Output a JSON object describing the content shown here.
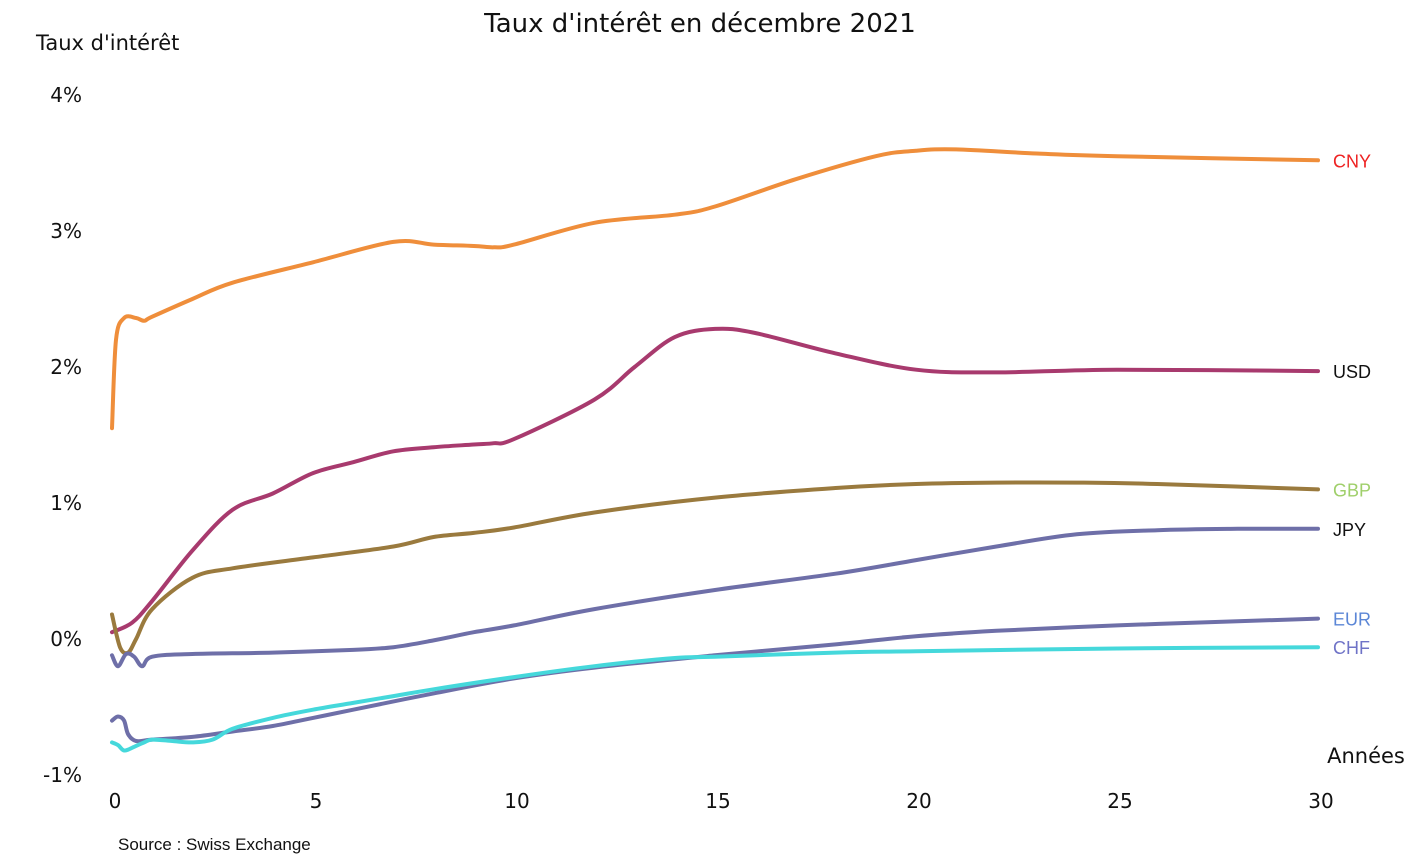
{
  "chart_data": {
    "type": "line",
    "title": "Taux d'intérêt en décembre 2021",
    "ylabel": "Taux d'intérêt",
    "xlabel": "Années",
    "source": "Source : Swiss Exchange",
    "xlim": [
      0,
      30
    ],
    "ylim": [
      -1,
      4
    ],
    "x_ticks": [
      0,
      5,
      10,
      15,
      20,
      25,
      30
    ],
    "y_ticks": [
      {
        "value": 4,
        "label": "4%"
      },
      {
        "value": 3,
        "label": "3%"
      },
      {
        "value": 2,
        "label": "2%"
      },
      {
        "value": 1,
        "label": "1%"
      },
      {
        "value": 0,
        "label": "0%"
      },
      {
        "value": -1,
        "label": "-1%"
      }
    ],
    "grid": false,
    "series": [
      {
        "name": "CNY",
        "color": "#ef8e3b",
        "label_color": "#ee2222",
        "points": [
          [
            0,
            1.55
          ],
          [
            0.1,
            2.2
          ],
          [
            0.3,
            2.36
          ],
          [
            0.6,
            2.36
          ],
          [
            0.8,
            2.34
          ],
          [
            1,
            2.37
          ],
          [
            2,
            2.5
          ],
          [
            3,
            2.62
          ],
          [
            5,
            2.77
          ],
          [
            7,
            2.92
          ],
          [
            8,
            2.9
          ],
          [
            9,
            2.89
          ],
          [
            9.5,
            2.88
          ],
          [
            10,
            2.9
          ],
          [
            12,
            3.06
          ],
          [
            14,
            3.12
          ],
          [
            15,
            3.18
          ],
          [
            17,
            3.38
          ],
          [
            19,
            3.55
          ],
          [
            20,
            3.59
          ],
          [
            21,
            3.6
          ],
          [
            23,
            3.57
          ],
          [
            25,
            3.55
          ],
          [
            30,
            3.52
          ]
        ]
      },
      {
        "name": "USD",
        "color": "#a83a6e",
        "label_color": "#111111",
        "points": [
          [
            0,
            0.05
          ],
          [
            0.5,
            0.12
          ],
          [
            1,
            0.28
          ],
          [
            2,
            0.65
          ],
          [
            3,
            0.95
          ],
          [
            4,
            1.07
          ],
          [
            5,
            1.22
          ],
          [
            6,
            1.3
          ],
          [
            7,
            1.38
          ],
          [
            8,
            1.41
          ],
          [
            9,
            1.43
          ],
          [
            9.5,
            1.44
          ],
          [
            10,
            1.47
          ],
          [
            12,
            1.76
          ],
          [
            13,
            2.0
          ],
          [
            14,
            2.22
          ],
          [
            15,
            2.28
          ],
          [
            16,
            2.25
          ],
          [
            18,
            2.1
          ],
          [
            20,
            1.98
          ],
          [
            22,
            1.96
          ],
          [
            25,
            1.98
          ],
          [
            30,
            1.97
          ]
        ]
      },
      {
        "name": "GBP",
        "color": "#9a7a3e",
        "label_color": "#9fcf6a",
        "points": [
          [
            0,
            0.18
          ],
          [
            0.2,
            -0.06
          ],
          [
            0.4,
            -0.1
          ],
          [
            0.6,
            0.0
          ],
          [
            1,
            0.22
          ],
          [
            2,
            0.45
          ],
          [
            3,
            0.52
          ],
          [
            5,
            0.6
          ],
          [
            7,
            0.68
          ],
          [
            8,
            0.75
          ],
          [
            9,
            0.78
          ],
          [
            10,
            0.82
          ],
          [
            12,
            0.93
          ],
          [
            15,
            1.04
          ],
          [
            18,
            1.11
          ],
          [
            20,
            1.14
          ],
          [
            22,
            1.15
          ],
          [
            24,
            1.15
          ],
          [
            26,
            1.14
          ],
          [
            30,
            1.1
          ]
        ]
      },
      {
        "name": "JPY",
        "color": "#6e6fa8",
        "label_color": "#111111",
        "points": [
          [
            0,
            -0.12
          ],
          [
            0.15,
            -0.2
          ],
          [
            0.35,
            -0.11
          ],
          [
            0.55,
            -0.13
          ],
          [
            0.75,
            -0.2
          ],
          [
            1,
            -0.13
          ],
          [
            2,
            -0.11
          ],
          [
            4,
            -0.1
          ],
          [
            6,
            -0.08
          ],
          [
            7,
            -0.06
          ],
          [
            8,
            -0.01
          ],
          [
            9,
            0.05
          ],
          [
            10,
            0.1
          ],
          [
            12,
            0.22
          ],
          [
            15,
            0.36
          ],
          [
            18,
            0.48
          ],
          [
            20,
            0.58
          ],
          [
            22,
            0.68
          ],
          [
            24,
            0.77
          ],
          [
            26,
            0.8
          ],
          [
            28,
            0.81
          ],
          [
            30,
            0.81
          ]
        ]
      },
      {
        "name": "EUR",
        "color": "#6e6fa8",
        "label_color": "#5b86d6",
        "points": [
          [
            0,
            -0.6
          ],
          [
            0.15,
            -0.57
          ],
          [
            0.3,
            -0.6
          ],
          [
            0.4,
            -0.7
          ],
          [
            0.6,
            -0.75
          ],
          [
            1,
            -0.74
          ],
          [
            2,
            -0.72
          ],
          [
            3,
            -0.68
          ],
          [
            4,
            -0.64
          ],
          [
            5,
            -0.58
          ],
          [
            6,
            -0.52
          ],
          [
            8,
            -0.4
          ],
          [
            10,
            -0.29
          ],
          [
            12,
            -0.21
          ],
          [
            15,
            -0.12
          ],
          [
            18,
            -0.04
          ],
          [
            20,
            0.02
          ],
          [
            22,
            0.06
          ],
          [
            25,
            0.1
          ],
          [
            28,
            0.13
          ],
          [
            30,
            0.15
          ]
        ]
      },
      {
        "name": "CHF",
        "color": "#45d8db",
        "label_color": "#6f73c7",
        "points": [
          [
            0,
            -0.76
          ],
          [
            0.15,
            -0.78
          ],
          [
            0.3,
            -0.82
          ],
          [
            0.5,
            -0.8
          ],
          [
            0.8,
            -0.76
          ],
          [
            1,
            -0.74
          ],
          [
            1.5,
            -0.75
          ],
          [
            2,
            -0.76
          ],
          [
            2.5,
            -0.74
          ],
          [
            3,
            -0.66
          ],
          [
            4,
            -0.58
          ],
          [
            5,
            -0.52
          ],
          [
            6,
            -0.47
          ],
          [
            7,
            -0.42
          ],
          [
            8,
            -0.37
          ],
          [
            10,
            -0.28
          ],
          [
            12,
            -0.2
          ],
          [
            14,
            -0.14
          ],
          [
            15,
            -0.13
          ],
          [
            18,
            -0.1
          ],
          [
            20,
            -0.09
          ],
          [
            25,
            -0.07
          ],
          [
            30,
            -0.06
          ]
        ]
      }
    ]
  }
}
